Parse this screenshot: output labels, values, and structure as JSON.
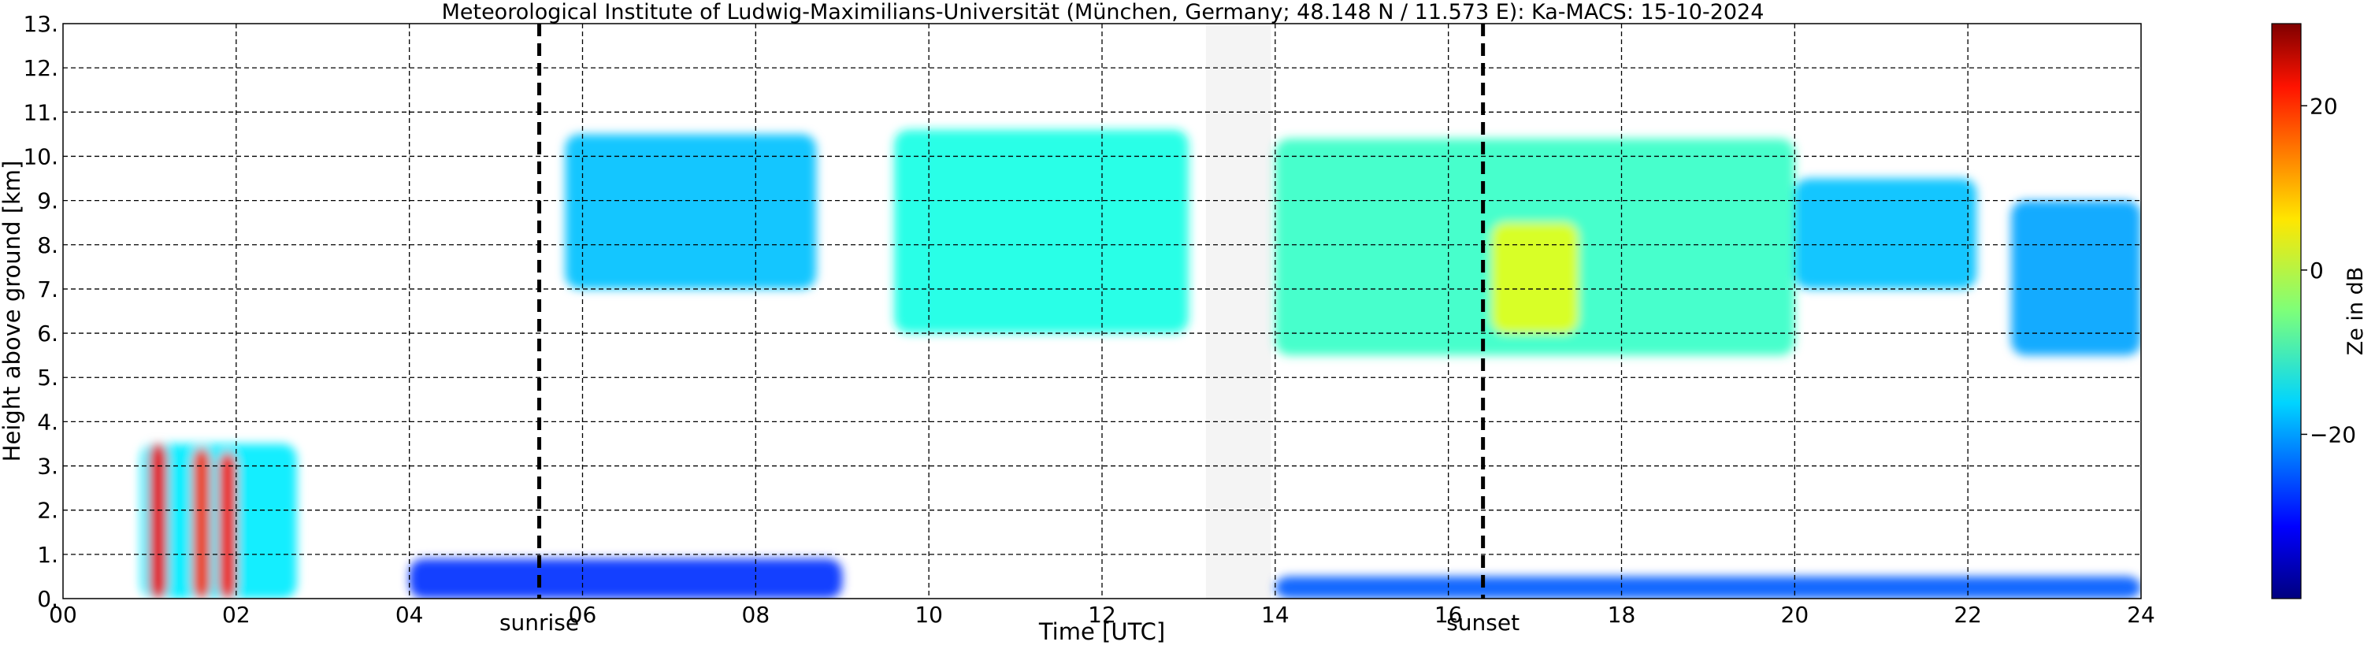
{
  "chart_data": {
    "type": "heatmap",
    "title": "Meteorological Institute of Ludwig-Maximilians-Universität (München, Germany; 48.148 N / 11.573 E):    Ka-MACS: 15-10-2024",
    "xlabel": "Time [UTC]",
    "ylabel": "Height above ground [km]",
    "xlim": [
      0,
      24
    ],
    "ylim": [
      0,
      13
    ],
    "x_ticks": [
      0,
      2,
      4,
      6,
      8,
      10,
      12,
      14,
      16,
      18,
      20,
      22,
      24
    ],
    "x_tick_labels": [
      "00",
      "02",
      "04",
      "06",
      "08",
      "10",
      "12",
      "14",
      "16",
      "18",
      "20",
      "22",
      "24"
    ],
    "y_ticks": [
      0,
      1,
      2,
      3,
      4,
      5,
      6,
      7,
      8,
      9,
      10,
      11,
      12,
      13
    ],
    "y_tick_labels": [
      "0.",
      "1.",
      "2.",
      "3.",
      "4.",
      "5.",
      "6.",
      "7.",
      "8.",
      "9.",
      "10.",
      "11.",
      "12.",
      "13."
    ],
    "grid": true,
    "colorbar": {
      "label": "Ze in dB",
      "range": [
        -40,
        30
      ],
      "ticks": [
        20,
        0,
        -20
      ],
      "tick_labels": [
        "20",
        "0",
        "−20"
      ]
    },
    "annotations": [
      {
        "label": "sunrise",
        "x": 5.5
      },
      {
        "label": "sunset",
        "x": 16.4
      }
    ],
    "data_gap": [
      13.2,
      13.95
    ],
    "echo_regions": [
      {
        "x": [
          1.0,
          1.2
        ],
        "y": [
          0,
          3.5
        ],
        "ze": 22
      },
      {
        "x": [
          1.5,
          1.7
        ],
        "y": [
          0,
          3.4
        ],
        "ze": 18
      },
      {
        "x": [
          1.8,
          2.0
        ],
        "y": [
          0,
          3.3
        ],
        "ze": 20
      },
      {
        "x": [
          0.9,
          2.7
        ],
        "y": [
          0,
          3.5
        ],
        "ze": -15
      },
      {
        "x": [
          4.0,
          9.0
        ],
        "y": [
          0,
          0.9
        ],
        "ze": -28
      },
      {
        "x": [
          5.8,
          8.7
        ],
        "y": [
          7.0,
          10.5
        ],
        "ze": -18
      },
      {
        "x": [
          9.6,
          13.0
        ],
        "y": [
          6.0,
          10.6
        ],
        "ze": -12
      },
      {
        "x": [
          14.0,
          20.0
        ],
        "y": [
          5.5,
          10.4
        ],
        "ze": -10
      },
      {
        "x": [
          16.5,
          17.5
        ],
        "y": [
          6.0,
          8.5
        ],
        "ze": 2
      },
      {
        "x": [
          20.0,
          22.1
        ],
        "y": [
          7.0,
          9.5
        ],
        "ze": -18
      },
      {
        "x": [
          22.5,
          24.0
        ],
        "y": [
          5.5,
          9.0
        ],
        "ze": -20
      },
      {
        "x": [
          14.0,
          24.0
        ],
        "y": [
          0,
          0.5
        ],
        "ze": -25
      }
    ]
  }
}
